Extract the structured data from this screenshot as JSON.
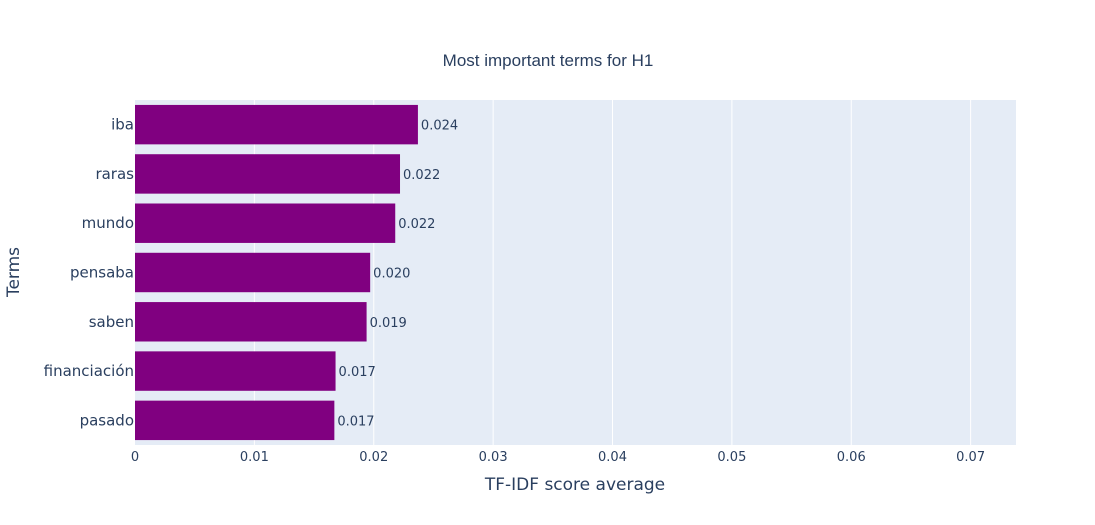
{
  "chart_data": {
    "type": "bar",
    "orientation": "horizontal",
    "title": "Most important terms for H1",
    "xlabel": "TF-IDF score average",
    "ylabel": "Terms",
    "categories": [
      "iba",
      "raras",
      "mundo",
      "pensaba",
      "saben",
      "financiación",
      "pasado"
    ],
    "values": [
      0.0237,
      0.0222,
      0.0218,
      0.0197,
      0.0194,
      0.0168,
      0.0167
    ],
    "value_labels": [
      "0.024",
      "0.022",
      "0.022",
      "0.020",
      "0.019",
      "0.017",
      "0.017"
    ],
    "xlim": [
      0,
      0.0738
    ],
    "xticks": [
      0,
      0.01,
      0.02,
      0.03,
      0.04,
      0.05,
      0.06,
      0.07
    ],
    "xtick_labels": [
      "0",
      "0.01",
      "0.02",
      "0.03",
      "0.04",
      "0.05",
      "0.06",
      "0.07"
    ],
    "bar_color": "#800080",
    "plot_background": "#e5ecf6",
    "grid": true,
    "legend": "none"
  }
}
